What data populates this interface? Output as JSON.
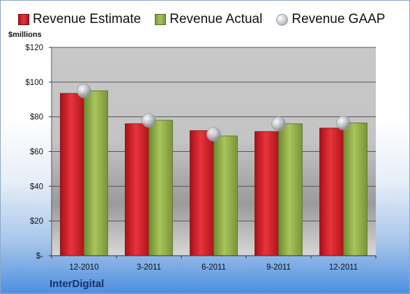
{
  "legend": {
    "estimate": "Revenue Estimate",
    "actual": "Revenue Actual",
    "gaap": "Revenue GAAP"
  },
  "unit_label": "$millions",
  "company": "InterDigital",
  "colors": {
    "estimate": "#d0242c",
    "actual": "#8aa84a",
    "gaap": "#b8bcc2",
    "plot_bg": "#c4c4c4"
  },
  "chart_data": {
    "type": "bar",
    "categories": [
      "12-2010",
      "3-2011",
      "6-2011",
      "9-2011",
      "12-2011"
    ],
    "series": [
      {
        "name": "Revenue Estimate",
        "values": [
          93.5,
          76,
          72,
          71.5,
          73.5
        ]
      },
      {
        "name": "Revenue Actual",
        "values": [
          95,
          78,
          69,
          76,
          76.5
        ]
      },
      {
        "name": "Revenue GAAP",
        "values": [
          95,
          78,
          70,
          76,
          76.5
        ]
      }
    ],
    "ylim": [
      0,
      120
    ],
    "yticks": [
      "$-",
      "$20",
      "$40",
      "$60",
      "$80",
      "$100",
      "$120"
    ],
    "ylabel": "$millions",
    "grid": true,
    "legend_position": "top"
  }
}
